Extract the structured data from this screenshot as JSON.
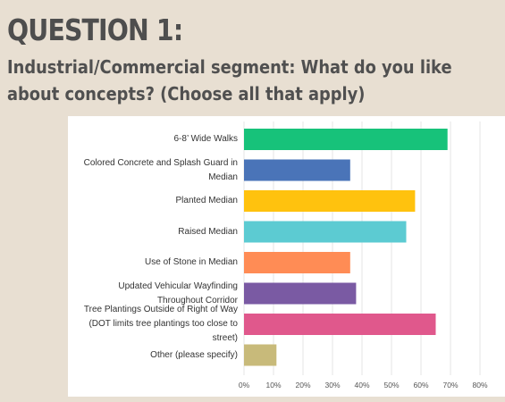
{
  "header": {
    "title": "QUESTION 1:",
    "subtitle": "Industrial/Commercial segment: What do you like about concepts? (Choose all that apply)"
  },
  "chart_data": {
    "type": "bar",
    "orientation": "horizontal",
    "categories": [
      "6-8’ Wide Walks",
      "Colored Concrete and Splash Guard in Median",
      "Planted Median",
      "Raised Median",
      "Use of Stone in Median",
      "Updated Vehicular Wayfinding Throughout Corridor",
      "Tree Plantings Outside of Right of Way (DOT limits tree plantings too close to street)",
      "Other (please specify)"
    ],
    "values": [
      69,
      36,
      58,
      55,
      36,
      38,
      65,
      11
    ],
    "colors": [
      "#17c27a",
      "#4a74b8",
      "#ffc20e",
      "#5ccbd2",
      "#ff8c55",
      "#7a5aa3",
      "#e0588c",
      "#c8ba7a"
    ],
    "xlim": [
      0,
      80
    ],
    "x_ticks": [
      "0%",
      "10%",
      "20%",
      "30%",
      "40%",
      "50%",
      "60%",
      "70%",
      "80%"
    ],
    "unit": "%",
    "grid": true,
    "legend": "none"
  }
}
